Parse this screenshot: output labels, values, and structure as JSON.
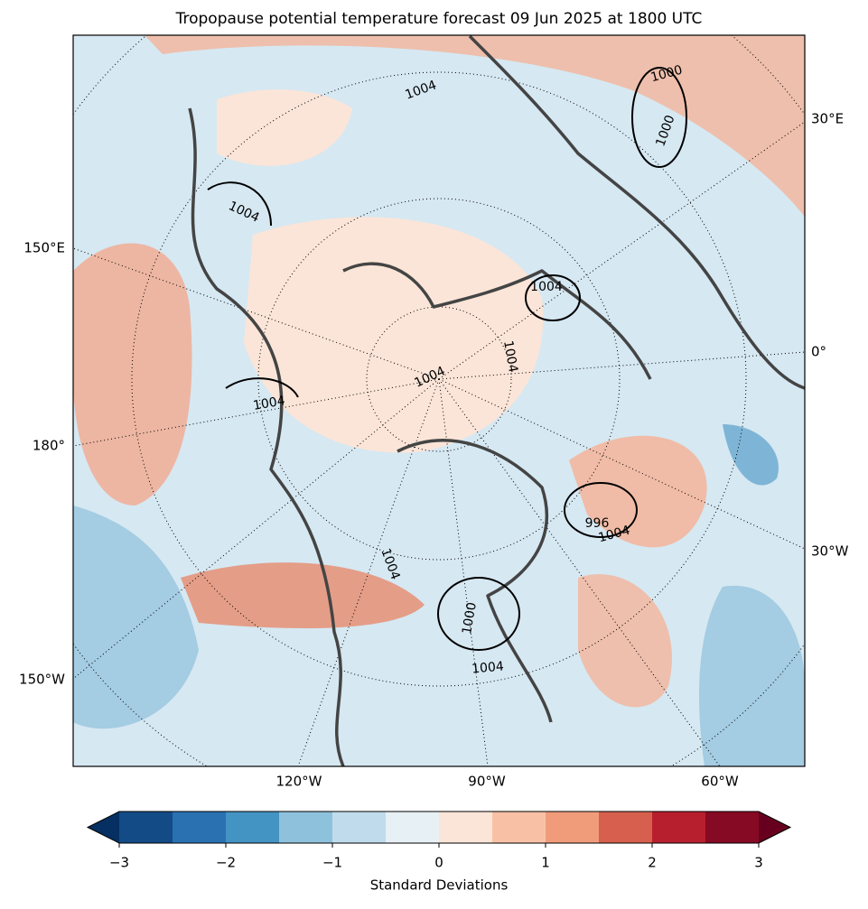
{
  "title": "Tropopause potential temperature forecast 09 Jun 2025 at 1800 UTC",
  "map": {
    "lon_labels": [
      "30°E",
      "0°",
      "30°W",
      "150°E",
      "180°",
      "150°W",
      "120°W",
      "90°W",
      "60°W"
    ],
    "contour_labels": [
      "1004",
      "1004",
      "1004",
      "1004",
      "1004",
      "1000",
      "1000",
      "1004",
      "1004",
      "996",
      "1004",
      "1000",
      "1004"
    ]
  },
  "colorbar": {
    "label": "Standard Deviations",
    "lim": [
      -3,
      3
    ],
    "levels": [
      -3,
      -2.5,
      -2,
      -1.5,
      -1,
      -0.5,
      0,
      0.5,
      1,
      1.5,
      2,
      2.5,
      3
    ],
    "colors": [
      "#134b87",
      "#2a71b2",
      "#4393c3",
      "#8ec1dc",
      "#c0dcec",
      "#e7f0f4",
      "#fbe5d8",
      "#f8c1a6",
      "#f09c7b",
      "#d6604d",
      "#b81f2e",
      "#870a24"
    ],
    "extend_colors": [
      "#053061",
      "#67001f"
    ],
    "ticks": [
      {
        "value": -3,
        "label": "−3"
      },
      {
        "value": -2,
        "label": "−2"
      },
      {
        "value": -1,
        "label": "−1"
      },
      0,
      1,
      2,
      3
    ]
  }
}
